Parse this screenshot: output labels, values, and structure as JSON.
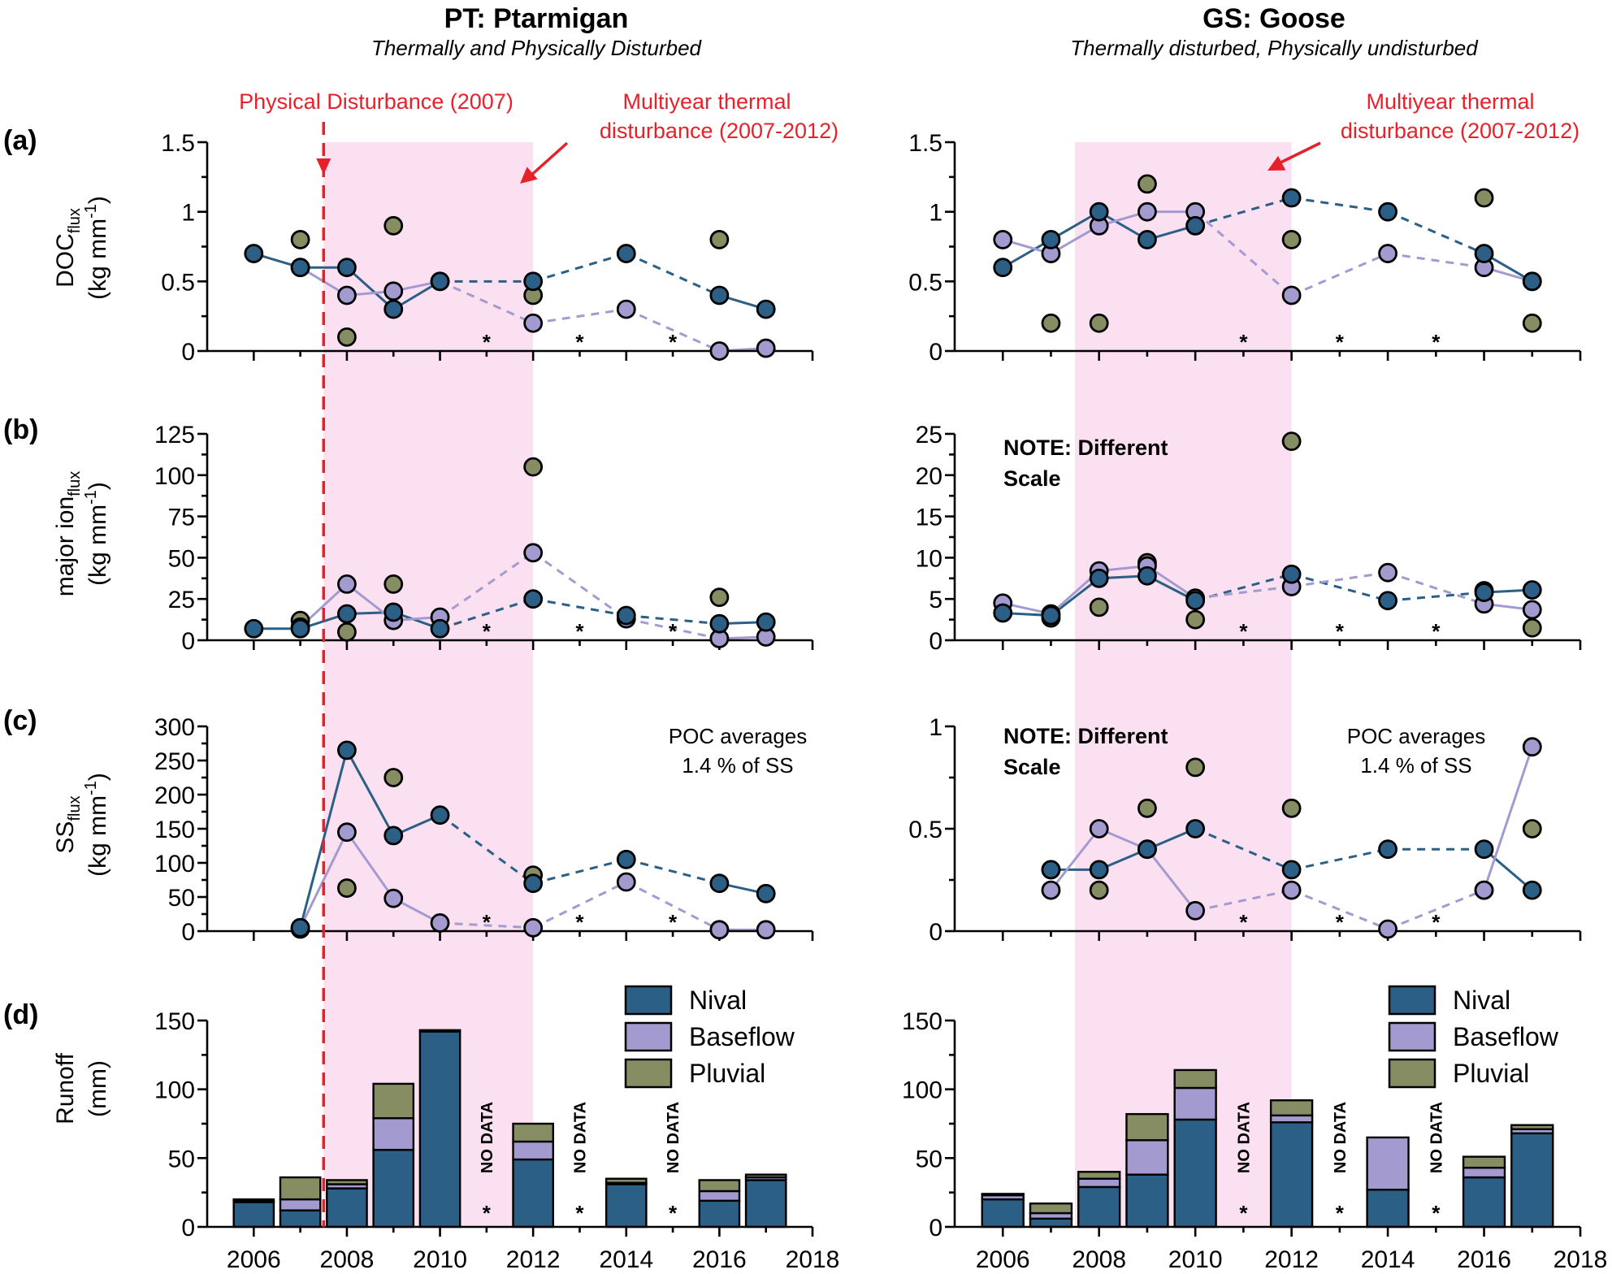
{
  "colors": {
    "nival": "#2b5f85",
    "baseflow": "#a39bd0",
    "pluvial": "#868d62",
    "shade": "#fbe0f1",
    "red": "#e8202a"
  },
  "sites": [
    {
      "id": "PT",
      "title": "PT: Ptarmigan",
      "subtitle": "Thermally and Physically Disturbed",
      "physical_disturbance_label": "Physical Disturbance (2007)",
      "thermal_label_line1": "Multiyear thermal",
      "thermal_label_line2": "disturbance (2007-2012)"
    },
    {
      "id": "GS",
      "title": "GS: Goose",
      "subtitle": "Thermally disturbed, Physically undisturbed",
      "thermal_label_line1": "Multiyear thermal",
      "thermal_label_line2": "disturbance (2007-2012)"
    }
  ],
  "panels": {
    "a": {
      "letter": "(a)",
      "ylabel_main": "DOC",
      "ylabel_sub": "flux",
      "ylabel_units": "(kg mm",
      "ylabel_units_sup": "-1",
      "ylabel_close": ")"
    },
    "b": {
      "letter": "(b)",
      "ylabel_main": "major ion",
      "ylabel_sub": "flux",
      "ylabel_units": "(kg mm",
      "ylabel_units_sup": "-1",
      "ylabel_close": ")"
    },
    "c": {
      "letter": "(c)",
      "ylabel_main": "SS",
      "ylabel_sub": "flux",
      "ylabel_units": "(kg mm",
      "ylabel_units_sup": "-1",
      "ylabel_close": ")"
    },
    "d": {
      "letter": "(d)",
      "ylabel_main": "Runoff",
      "ylabel_units": "(mm)"
    }
  },
  "notes": {
    "different_scale_line1": "NOTE: Different",
    "different_scale_line2": "Scale",
    "poc_line1": "POC averages",
    "poc_line2": "1.4 % of SS",
    "no_data": "NO DATA",
    "star": "*"
  },
  "legend": [
    "Nival",
    "Baseflow",
    "Pluvial"
  ],
  "chart_data": [
    {
      "type": "line",
      "panel": "a",
      "site": "PT",
      "ylabel": "DOC flux (kg mm-1)",
      "ylim": [
        0,
        1.5
      ],
      "yticks": [
        0,
        0.5,
        1,
        1.5
      ],
      "ytick_labels": [
        "0",
        "0.5",
        "1",
        "1.5"
      ],
      "xlim": [
        2005,
        2018
      ],
      "shaded_years": [
        2007.5,
        2012
      ],
      "missing_years": [
        2011,
        2013,
        2015
      ],
      "series": [
        {
          "name": "Nival",
          "x": [
            2006,
            2007,
            2008,
            2009,
            2010,
            2012,
            2014,
            2016,
            2017
          ],
          "y": [
            0.7,
            0.6,
            0.6,
            0.3,
            0.5,
            0.5,
            0.7,
            0.4,
            0.3
          ]
        },
        {
          "name": "Baseflow",
          "x": [
            2007,
            2008,
            2009,
            2010,
            2012,
            2014,
            2016,
            2017
          ],
          "y": [
            0.6,
            0.4,
            0.43,
            0.5,
            0.2,
            0.3,
            0.0,
            0.02
          ]
        },
        {
          "name": "Pluvial",
          "x": [
            2007,
            2008,
            2009,
            2012,
            2016
          ],
          "y": [
            0.8,
            0.1,
            0.9,
            0.4,
            0.8
          ]
        }
      ]
    },
    {
      "type": "line",
      "panel": "a",
      "site": "GS",
      "ylabel": "DOC flux (kg mm-1)",
      "ylim": [
        0,
        1.5
      ],
      "yticks": [
        0,
        0.5,
        1,
        1.5
      ],
      "ytick_labels": [
        "0",
        "0.5",
        "1",
        "1.5"
      ],
      "xlim": [
        2005,
        2018
      ],
      "shaded_years": [
        2007.5,
        2012
      ],
      "missing_years": [
        2011,
        2013,
        2015
      ],
      "series": [
        {
          "name": "Nival",
          "x": [
            2006,
            2007,
            2008,
            2009,
            2010,
            2012,
            2014,
            2016,
            2017
          ],
          "y": [
            0.6,
            0.8,
            1.0,
            0.8,
            0.9,
            1.1,
            1.0,
            0.7,
            0.5
          ]
        },
        {
          "name": "Baseflow",
          "x": [
            2006,
            2007,
            2008,
            2009,
            2010,
            2012,
            2014,
            2016,
            2017
          ],
          "y": [
            0.8,
            0.7,
            0.9,
            1.0,
            1.0,
            0.4,
            0.7,
            0.6,
            0.5
          ]
        },
        {
          "name": "Pluvial",
          "x": [
            2007,
            2008,
            2009,
            2010,
            2012,
            2016,
            2017
          ],
          "y": [
            0.2,
            0.2,
            1.2,
            0.9,
            0.8,
            1.1,
            0.2
          ]
        }
      ]
    },
    {
      "type": "line",
      "panel": "b",
      "site": "PT",
      "ylabel": "major ion flux (kg mm-1)",
      "ylim": [
        0,
        125
      ],
      "yticks": [
        0,
        25,
        50,
        75,
        100,
        125
      ],
      "ytick_labels": [
        "0",
        "25",
        "50",
        "75",
        "100",
        "125"
      ],
      "xlim": [
        2005,
        2018
      ],
      "shaded_years": [
        2007.5,
        2012
      ],
      "missing_years": [
        2011,
        2013,
        2015
      ],
      "series": [
        {
          "name": "Nival",
          "x": [
            2006,
            2007,
            2008,
            2009,
            2010,
            2012,
            2014,
            2016,
            2017
          ],
          "y": [
            7,
            7,
            16,
            17,
            7,
            25,
            15,
            10,
            11
          ]
        },
        {
          "name": "Baseflow",
          "x": [
            2007,
            2008,
            2009,
            2010,
            2012,
            2014,
            2016,
            2017
          ],
          "y": [
            8,
            34,
            12,
            14,
            53,
            13,
            1,
            2
          ]
        },
        {
          "name": "Pluvial",
          "x": [
            2007,
            2008,
            2009,
            2012,
            2016
          ],
          "y": [
            12,
            5,
            34,
            105,
            26
          ]
        }
      ]
    },
    {
      "type": "line",
      "panel": "b",
      "site": "GS",
      "ylabel": "major ion flux (kg mm-1)",
      "ylim": [
        0,
        25
      ],
      "yticks": [
        0,
        5,
        10,
        15,
        20,
        25
      ],
      "ytick_labels": [
        "0",
        "5",
        "10",
        "15",
        "20",
        "25"
      ],
      "xlim": [
        2005,
        2018
      ],
      "shaded_years": [
        2007.5,
        2012
      ],
      "missing_years": [
        2011,
        2013,
        2015
      ],
      "series": [
        {
          "name": "Nival",
          "x": [
            2006,
            2007,
            2008,
            2009,
            2010,
            2012,
            2014,
            2016,
            2017
          ],
          "y": [
            3.3,
            3.0,
            7.5,
            7.8,
            4.8,
            8.0,
            4.8,
            5.8,
            6.1
          ]
        },
        {
          "name": "Baseflow",
          "x": [
            2006,
            2007,
            2008,
            2009,
            2010,
            2012,
            2014,
            2016,
            2017
          ],
          "y": [
            4.5,
            3.2,
            8.4,
            9.0,
            5.1,
            6.5,
            8.2,
            4.4,
            3.7
          ]
        },
        {
          "name": "Pluvial",
          "x": [
            2007,
            2008,
            2009,
            2010,
            2012,
            2016,
            2017
          ],
          "y": [
            2.7,
            4.0,
            9.4,
            2.5,
            24.1,
            6.0,
            1.5
          ]
        }
      ]
    },
    {
      "type": "line",
      "panel": "c",
      "site": "PT",
      "ylabel": "SS flux (kg mm-1)",
      "ylim": [
        0,
        300
      ],
      "yticks": [
        0,
        50,
        100,
        150,
        200,
        250,
        300
      ],
      "ytick_labels": [
        "0",
        "50",
        "100",
        "150",
        "200",
        "250",
        "300"
      ],
      "xlim": [
        2005,
        2018
      ],
      "shaded_years": [
        2007.5,
        2012
      ],
      "missing_years": [
        2011,
        2013,
        2015
      ],
      "annotation": "POC averages 1.4 % of SS",
      "series": [
        {
          "name": "Nival",
          "x": [
            2007,
            2008,
            2009,
            2010,
            2012,
            2014,
            2016,
            2017
          ],
          "y": [
            5,
            265,
            140,
            170,
            70,
            105,
            70,
            55
          ]
        },
        {
          "name": "Baseflow",
          "x": [
            2007,
            2008,
            2009,
            2010,
            2012,
            2014,
            2016,
            2017
          ],
          "y": [
            5,
            145,
            48,
            12,
            5,
            72,
            2,
            2
          ]
        },
        {
          "name": "Pluvial",
          "x": [
            2007,
            2008,
            2009,
            2012,
            2016
          ],
          "y": [
            3,
            63,
            225,
            82,
            2
          ]
        }
      ]
    },
    {
      "type": "line",
      "panel": "c",
      "site": "GS",
      "ylabel": "SS flux (kg mm-1)",
      "ylim": [
        0,
        1
      ],
      "yticks": [
        0,
        0.5,
        1
      ],
      "ytick_labels": [
        "0",
        "0.5",
        "1"
      ],
      "xlim": [
        2005,
        2018
      ],
      "shaded_years": [
        2007.5,
        2012
      ],
      "missing_years": [
        2011,
        2013,
        2015
      ],
      "annotation": "POC averages 1.4 % of SS",
      "series": [
        {
          "name": "Nival",
          "x": [
            2007,
            2008,
            2009,
            2010,
            2012,
            2014,
            2016,
            2017
          ],
          "y": [
            0.3,
            0.3,
            0.4,
            0.5,
            0.3,
            0.4,
            0.4,
            0.2
          ]
        },
        {
          "name": "Baseflow",
          "x": [
            2007,
            2008,
            2009,
            2010,
            2012,
            2014,
            2016,
            2017
          ],
          "y": [
            0.2,
            0.5,
            0.4,
            0.1,
            0.2,
            0.01,
            0.2,
            0.9
          ]
        },
        {
          "name": "Pluvial",
          "x": [
            2007,
            2008,
            2009,
            2010,
            2012,
            2016,
            2017
          ],
          "y": [
            0.3,
            0.2,
            0.6,
            0.8,
            0.6,
            0.2,
            0.5
          ]
        }
      ]
    },
    {
      "type": "bar",
      "stacked": true,
      "panel": "d",
      "site": "PT",
      "ylabel": "Runoff (mm)",
      "ylim": [
        0,
        150
      ],
      "yticks": [
        0,
        50,
        100,
        150
      ],
      "ytick_labels": [
        "0",
        "50",
        "100",
        "150"
      ],
      "xlim": [
        2005,
        2018
      ],
      "xticks": [
        2006,
        2008,
        2010,
        2012,
        2014,
        2016,
        2018
      ],
      "xtick_labels": [
        "2006",
        "2008",
        "2010",
        "2012",
        "2014",
        "2016",
        "2018"
      ],
      "shaded_years": [
        2007.5,
        2012
      ],
      "no_data_years": [
        2011,
        2013,
        2015
      ],
      "categories": [
        2006,
        2007,
        2008,
        2009,
        2010,
        2012,
        2014,
        2016,
        2017
      ],
      "series": [
        {
          "name": "Nival",
          "values": [
            18,
            12,
            28,
            56,
            142,
            49,
            31,
            19,
            34
          ]
        },
        {
          "name": "Baseflow",
          "values": [
            1,
            8,
            3,
            23,
            0,
            13,
            1,
            7,
            2
          ]
        },
        {
          "name": "Pluvial",
          "values": [
            1,
            16,
            3,
            25,
            1,
            13,
            3,
            8,
            2
          ]
        }
      ]
    },
    {
      "type": "bar",
      "stacked": true,
      "panel": "d",
      "site": "GS",
      "ylabel": "Runoff (mm)",
      "ylim": [
        0,
        150
      ],
      "yticks": [
        0,
        50,
        100,
        150
      ],
      "ytick_labels": [
        "0",
        "50",
        "100",
        "150"
      ],
      "xlim": [
        2005,
        2018
      ],
      "xticks": [
        2006,
        2008,
        2010,
        2012,
        2014,
        2016,
        2018
      ],
      "xtick_labels": [
        "2006",
        "2008",
        "2010",
        "2012",
        "2014",
        "2016",
        "2018"
      ],
      "shaded_years": [
        2007.5,
        2012
      ],
      "no_data_years": [
        2011,
        2013,
        2015
      ],
      "categories": [
        2006,
        2007,
        2008,
        2009,
        2010,
        2012,
        2014,
        2016,
        2017
      ],
      "series": [
        {
          "name": "Nival",
          "values": [
            20,
            6,
            29,
            38,
            78,
            76,
            27,
            36,
            68
          ]
        },
        {
          "name": "Baseflow",
          "values": [
            3,
            4,
            6,
            25,
            23,
            5,
            38,
            7,
            3
          ]
        },
        {
          "name": "Pluvial",
          "values": [
            1,
            7,
            5,
            19,
            13,
            11,
            0,
            8,
            3
          ]
        }
      ]
    }
  ]
}
